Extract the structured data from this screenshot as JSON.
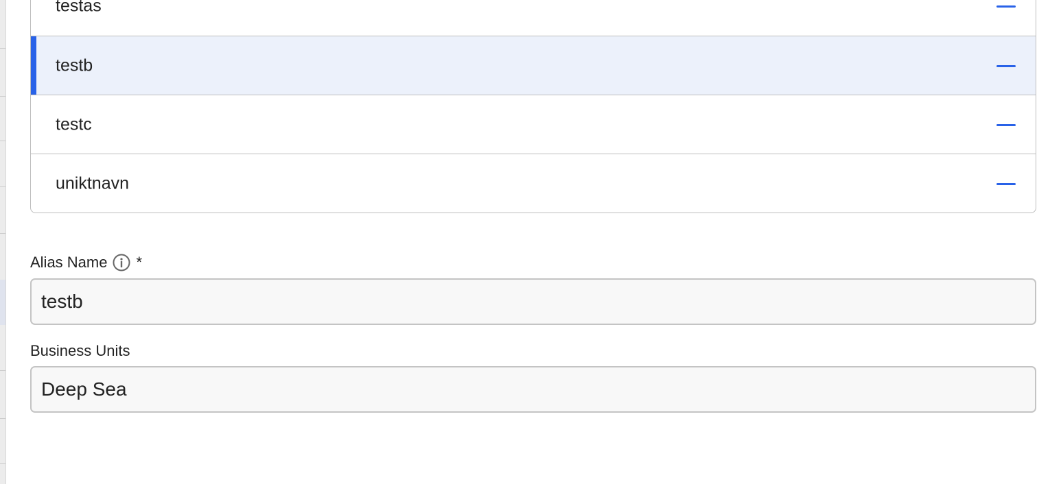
{
  "alias_list": {
    "items": [
      {
        "label": "testas",
        "selected": false
      },
      {
        "label": "testb",
        "selected": true
      },
      {
        "label": "testc",
        "selected": false
      },
      {
        "label": "uniktnavn",
        "selected": false
      }
    ],
    "remove_icon": "minus-icon"
  },
  "form": {
    "alias_name": {
      "label": "Alias Name",
      "required_marker": "*",
      "info_icon": "info-icon",
      "value": "testb"
    },
    "business_units": {
      "label": "Business Units",
      "value": "Deep Sea"
    }
  },
  "colors": {
    "accent": "#2962e8",
    "selected_row_bg": "#ecf1fb"
  }
}
